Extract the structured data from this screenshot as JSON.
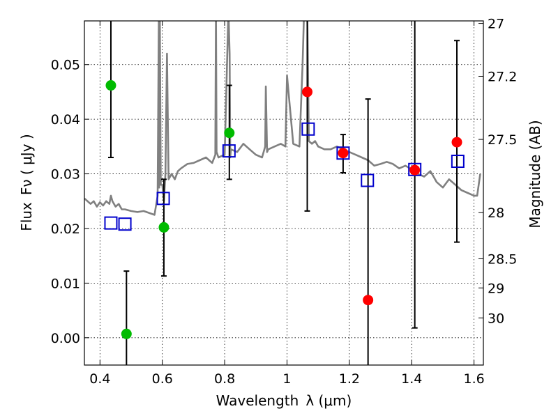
{
  "chart_data": {
    "type": "scatter",
    "xlabel_text": "Wavelength",
    "xlabel_math": "λ (μm)",
    "ylabel_text": "Flux",
    "ylabel_math": "Fν ( μJy )",
    "ylabel_right": "Magnitude (AB)",
    "xlim": [
      0.35,
      1.63
    ],
    "ylim": [
      -0.005,
      0.058
    ],
    "x_ticks": [
      0.4,
      0.6,
      0.8,
      1.0,
      1.2,
      1.4,
      1.6
    ],
    "x_tick_labels": [
      "0.4",
      "0.6",
      "0.8",
      "1",
      "1.2",
      "1.4",
      "1.6"
    ],
    "y_ticks": [
      0.0,
      0.01,
      0.02,
      0.03,
      0.04,
      0.05
    ],
    "y_tick_labels": [
      "0.00",
      "0.01",
      "0.02",
      "0.03",
      "0.04",
      "0.05"
    ],
    "right_ticks": [
      {
        "mag": 27,
        "label": "27"
      },
      {
        "mag": 27.2,
        "label": "27.2"
      },
      {
        "mag": 27.5,
        "label": "27.5"
      },
      {
        "mag": 28,
        "label": "28"
      },
      {
        "mag": 28.5,
        "label": "28.5"
      },
      {
        "mag": 29,
        "label": "29"
      },
      {
        "mag": 30,
        "label": "30"
      }
    ],
    "grid": true,
    "colors": {
      "template": "#808080",
      "ground_points": "#00bb00",
      "hst_points": "#ff0000",
      "model_boxes": "#0000cc",
      "errorbars": "#000000"
    },
    "series": [
      {
        "name": "template_sed",
        "style": "line",
        "x": [
          0.35,
          0.37,
          0.38,
          0.39,
          0.4,
          0.41,
          0.42,
          0.43,
          0.435,
          0.44,
          0.45,
          0.46,
          0.47,
          0.48,
          0.5,
          0.52,
          0.54,
          0.56,
          0.575,
          0.585,
          0.589,
          0.59,
          0.592,
          0.595,
          0.6,
          0.605,
          0.61,
          0.615,
          0.62,
          0.63,
          0.64,
          0.65,
          0.66,
          0.68,
          0.7,
          0.72,
          0.74,
          0.76,
          0.77,
          0.772,
          0.774,
          0.78,
          0.8,
          0.812,
          0.816,
          0.818,
          0.82,
          0.84,
          0.86,
          0.88,
          0.9,
          0.92,
          0.93,
          0.932,
          0.936,
          0.94,
          0.96,
          0.98,
          0.995,
          1.0,
          1.02,
          1.04,
          1.05,
          1.055,
          1.058,
          1.06,
          1.065,
          1.07,
          1.08,
          1.09,
          1.1,
          1.12,
          1.14,
          1.16,
          1.18,
          1.2,
          1.22,
          1.24,
          1.26,
          1.28,
          1.3,
          1.32,
          1.34,
          1.36,
          1.38,
          1.4,
          1.42,
          1.44,
          1.46,
          1.48,
          1.5,
          1.52,
          1.54,
          1.56,
          1.58,
          1.6,
          1.61,
          1.62
        ],
        "y": [
          0.0255,
          0.0245,
          0.025,
          0.024,
          0.0248,
          0.0242,
          0.025,
          0.0245,
          0.026,
          0.025,
          0.024,
          0.0245,
          0.0235,
          0.0235,
          0.0232,
          0.023,
          0.0232,
          0.0228,
          0.0225,
          0.026,
          0.06,
          0.0275,
          0.06,
          0.028,
          0.028,
          0.025,
          0.03,
          0.052,
          0.029,
          0.03,
          0.029,
          0.0305,
          0.031,
          0.0318,
          0.032,
          0.0325,
          0.033,
          0.032,
          0.0335,
          0.06,
          0.034,
          0.033,
          0.0335,
          0.06,
          0.052,
          0.033,
          0.0345,
          0.034,
          0.0355,
          0.0345,
          0.0335,
          0.033,
          0.035,
          0.046,
          0.034,
          0.0345,
          0.035,
          0.0355,
          0.035,
          0.048,
          0.0355,
          0.035,
          0.05,
          0.06,
          0.06,
          0.06,
          0.06,
          0.036,
          0.0355,
          0.036,
          0.035,
          0.0345,
          0.0345,
          0.035,
          0.0345,
          0.034,
          0.0335,
          0.033,
          0.0325,
          0.0315,
          0.0318,
          0.0322,
          0.0318,
          0.031,
          0.0315,
          0.0308,
          0.03,
          0.0295,
          0.0305,
          0.0285,
          0.0275,
          0.029,
          0.028,
          0.027,
          0.0265,
          0.026,
          0.026,
          0.03
        ]
      },
      {
        "name": "ground_photometry",
        "style": "circle",
        "color": "#00bb00",
        "x": [
          0.435,
          0.485,
          0.605,
          0.815
        ],
        "y": [
          0.0462,
          0.0007,
          0.0202,
          0.0375
        ],
        "err_low": [
          0.033,
          -0.006,
          0.0113,
          0.029
        ],
        "err_high": [
          0.06,
          0.0122,
          0.029,
          0.0462
        ]
      },
      {
        "name": "hst_photometry",
        "style": "circle",
        "color": "#ff0000",
        "x": [
          1.065,
          1.18,
          1.26,
          1.41,
          1.545
        ],
        "y": [
          0.045,
          0.0338,
          0.0069,
          0.0307,
          0.0358
        ],
        "err_low": [
          0.0232,
          0.0302,
          -0.006,
          0.0018,
          0.0175
        ],
        "err_high": [
          0.06,
          0.0372,
          0.0437,
          0.06,
          0.0544
        ]
      },
      {
        "name": "model_bandpass_flux",
        "style": "open-square",
        "color": "#0000cc",
        "x": [
          0.435,
          0.48,
          0.603,
          0.814,
          1.068,
          1.18,
          1.258,
          1.41,
          1.548
        ],
        "y": [
          0.021,
          0.0208,
          0.0255,
          0.0342,
          0.0382,
          0.0338,
          0.0288,
          0.0308,
          0.0323
        ]
      }
    ]
  }
}
